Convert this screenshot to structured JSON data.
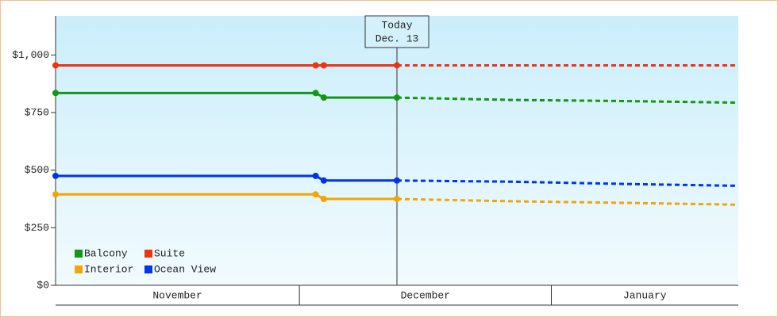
{
  "chart_data": {
    "type": "line",
    "x": [
      0,
      32,
      33,
      42,
      56,
      70,
      84
    ],
    "xlim": [
      0,
      84
    ],
    "xticks": [
      {
        "value": 0,
        "label": "November"
      },
      {
        "value": 30,
        "label": "December"
      },
      {
        "value": 61,
        "label": "January"
      }
    ],
    "today": {
      "x": 42,
      "lines": [
        "Today",
        "Dec. 13"
      ]
    },
    "ylim": [
      0,
      1170
    ],
    "yticks": [
      {
        "value": 0,
        "label": "$0"
      },
      {
        "value": 250,
        "label": "$250"
      },
      {
        "value": 500,
        "label": "$500"
      },
      {
        "value": 750,
        "label": "$750"
      },
      {
        "value": 1000,
        "label": "$1,000"
      }
    ],
    "legend": "bottom-left",
    "series": [
      {
        "name": "Balcony",
        "color": "#119911",
        "values": [
          835,
          835,
          815,
          815,
          805,
          800,
          793
        ]
      },
      {
        "name": "Suite",
        "color": "#ee3311",
        "values": [
          955,
          955,
          955,
          955,
          955,
          955,
          955
        ]
      },
      {
        "name": "Interior",
        "color": "#f5a500",
        "values": [
          395,
          395,
          375,
          375,
          365,
          358,
          350
        ]
      },
      {
        "name": "Ocean View",
        "color": "#0033ee",
        "values": [
          475,
          475,
          455,
          455,
          450,
          440,
          432
        ]
      }
    ]
  }
}
